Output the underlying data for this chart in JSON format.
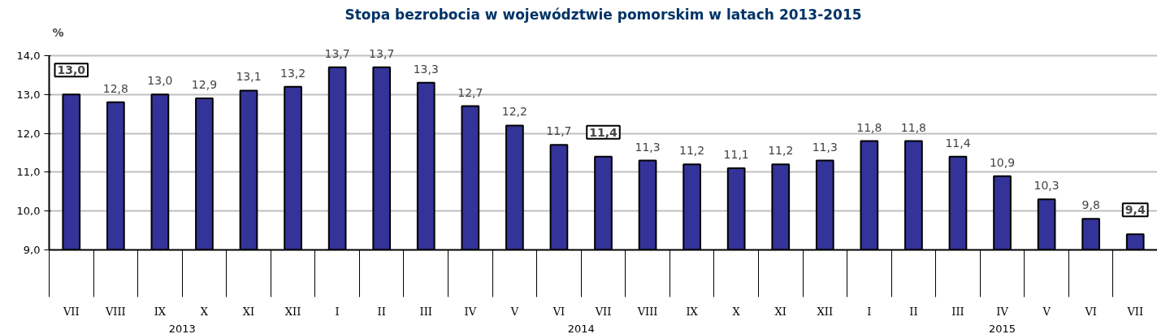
{
  "chart_data": {
    "type": "bar",
    "title": "Stopa bezrobocia w województwie pomorskim w latach 2013-2015",
    "ylabel": "%",
    "categories": [
      "VII",
      "VIII",
      "IX",
      "X",
      "XI",
      "XII",
      "I",
      "II",
      "III",
      "IV",
      "V",
      "VI",
      "VII",
      "VIII",
      "IX",
      "X",
      "XI",
      "XII",
      "I",
      "II",
      "III",
      "IV",
      "V",
      "VI",
      "VII"
    ],
    "values": [
      13.0,
      12.8,
      13.0,
      12.9,
      13.1,
      13.2,
      13.7,
      13.7,
      13.3,
      12.7,
      12.2,
      11.7,
      11.4,
      11.3,
      11.2,
      11.1,
      11.2,
      11.3,
      11.8,
      11.8,
      11.4,
      10.9,
      10.3,
      9.8,
      9.4
    ],
    "value_labels": [
      "13,0",
      "12,8",
      "13,0",
      "12,9",
      "13,1",
      "13,2",
      "13,7",
      "13,7",
      "13,3",
      "12,7",
      "12,2",
      "11,7",
      "11,4",
      "11,3",
      "11,2",
      "11,1",
      "11,2",
      "11,3",
      "11,8",
      "11,8",
      "11,4",
      "10,9",
      "10,3",
      "9,8",
      "9,4"
    ],
    "color": "#333399",
    "ylim": [
      9,
      14
    ],
    "yticks": [
      {
        "value": 9,
        "label": "9,0"
      },
      {
        "value": 10,
        "label": "10,0"
      },
      {
        "value": 11,
        "label": "11,0"
      },
      {
        "value": 12,
        "label": "12,0"
      },
      {
        "value": 13,
        "label": "13,0"
      },
      {
        "value": 14,
        "label": "14,0"
      }
    ],
    "grid": "y",
    "annotations": [
      "2013",
      "2014",
      "2015"
    ]
  }
}
